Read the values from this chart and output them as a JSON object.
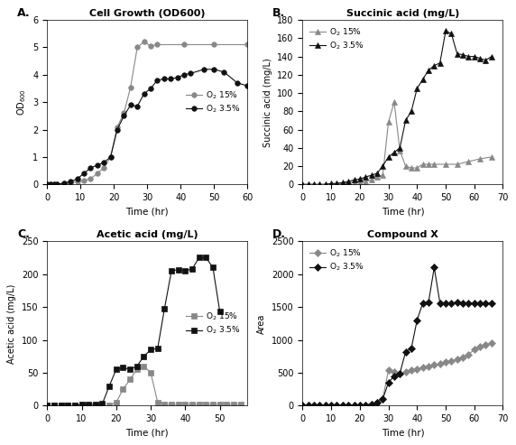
{
  "panel_A": {
    "title": "Cell Growth (OD600)",
    "xlabel": "Time (hr)",
    "ylabel": "OD$_{600}$",
    "xlim": [
      0,
      60
    ],
    "ylim": [
      0,
      6
    ],
    "xticks": [
      0,
      10,
      20,
      30,
      40,
      50,
      60
    ],
    "yticks": [
      0,
      1,
      2,
      3,
      4,
      5,
      6
    ],
    "series": [
      {
        "label": "O$_2$ 15%",
        "color": "#888888",
        "marker": "o",
        "markersize": 4,
        "markerfacecolor": "#888888",
        "x": [
          0,
          1,
          2,
          3,
          5,
          7,
          9,
          11,
          13,
          15,
          17,
          19,
          21,
          23,
          25,
          27,
          29,
          31,
          33,
          41,
          50,
          60
        ],
        "y": [
          0,
          0,
          0,
          0,
          0.05,
          0.05,
          0.1,
          0.15,
          0.2,
          0.4,
          0.6,
          1.0,
          2.1,
          2.6,
          3.55,
          5.0,
          5.2,
          5.05,
          5.1,
          5.1,
          5.1,
          5.1
        ]
      },
      {
        "label": "O$_2$ 3.5%",
        "color": "#111111",
        "marker": "o",
        "markersize": 4,
        "markerfacecolor": "#111111",
        "x": [
          0,
          1,
          2,
          3,
          5,
          7,
          9,
          11,
          13,
          15,
          17,
          19,
          21,
          23,
          25,
          27,
          29,
          31,
          33,
          35,
          37,
          39,
          41,
          43,
          47,
          50,
          53,
          57,
          60
        ],
        "y": [
          0,
          0,
          0,
          0,
          0.05,
          0.1,
          0.2,
          0.4,
          0.6,
          0.7,
          0.8,
          1.0,
          2.0,
          2.5,
          2.9,
          2.85,
          3.3,
          3.5,
          3.8,
          3.85,
          3.85,
          3.9,
          4.0,
          4.05,
          4.2,
          4.2,
          4.1,
          3.7,
          3.6
        ]
      }
    ],
    "legend_loc": "center right",
    "legend_bbox": null
  },
  "panel_B": {
    "title": "Succinic acid (mg/L)",
    "xlabel": "Time (hr)",
    "ylabel": "Succinic acid (mg/L)",
    "xlim": [
      0,
      70
    ],
    "ylim": [
      0,
      180
    ],
    "xticks": [
      0,
      10,
      20,
      30,
      40,
      50,
      60,
      70
    ],
    "yticks": [
      0,
      20,
      40,
      60,
      80,
      100,
      120,
      140,
      160,
      180
    ],
    "series": [
      {
        "label": "O$_2$ 15%",
        "color": "#888888",
        "marker": "^",
        "markersize": 5,
        "markerfacecolor": "#888888",
        "x": [
          0,
          2,
          4,
          6,
          8,
          10,
          12,
          14,
          16,
          18,
          20,
          22,
          24,
          26,
          28,
          30,
          32,
          34,
          36,
          38,
          40,
          42,
          44,
          46,
          50,
          54,
          58,
          62,
          66
        ],
        "y": [
          0,
          0,
          0,
          0,
          0,
          0,
          1,
          1,
          2,
          2,
          2,
          3,
          5,
          8,
          10,
          68,
          90,
          37,
          20,
          18,
          18,
          22,
          22,
          22,
          22,
          22,
          25,
          28,
          30
        ]
      },
      {
        "label": "O$_2$ 3.5%",
        "color": "#111111",
        "marker": "^",
        "markersize": 5,
        "markerfacecolor": "#111111",
        "x": [
          0,
          2,
          4,
          6,
          8,
          10,
          12,
          14,
          16,
          18,
          20,
          22,
          24,
          26,
          28,
          30,
          32,
          34,
          36,
          38,
          40,
          42,
          44,
          46,
          48,
          50,
          52,
          54,
          56,
          58,
          60,
          62,
          64,
          66
        ],
        "y": [
          0,
          0,
          0,
          0,
          0,
          1,
          1,
          2,
          3,
          5,
          6,
          8,
          10,
          12,
          20,
          30,
          35,
          40,
          70,
          80,
          105,
          115,
          125,
          130,
          133,
          168,
          165,
          143,
          142,
          140,
          140,
          138,
          136,
          140
        ]
      }
    ],
    "legend_loc": "upper left",
    "legend_bbox": null
  },
  "panel_C": {
    "title": "Acetic acid (mg/L)",
    "xlabel": "Time (hr)",
    "ylabel": "Acetic acid (mg/L)",
    "xlim": [
      0,
      58
    ],
    "ylim": [
      0,
      250
    ],
    "xticks": [
      0,
      10,
      20,
      30,
      40,
      50
    ],
    "yticks": [
      0,
      50,
      100,
      150,
      200,
      250
    ],
    "series": [
      {
        "label": "O$_2$ 15%",
        "color": "#888888",
        "marker": "s",
        "markersize": 4,
        "markerfacecolor": "#888888",
        "x": [
          0,
          2,
          4,
          6,
          8,
          10,
          12,
          14,
          16,
          18,
          20,
          22,
          24,
          26,
          28,
          30,
          32,
          34,
          36,
          38,
          40,
          42,
          44,
          46,
          48,
          50,
          52,
          54,
          56
        ],
        "y": [
          0,
          0,
          0,
          0,
          0,
          0,
          0,
          0,
          0,
          0,
          5,
          25,
          40,
          55,
          60,
          50,
          5,
          2,
          2,
          2,
          2,
          2,
          2,
          2,
          2,
          2,
          2,
          2,
          2
        ]
      },
      {
        "label": "O$_2$ 3.5%",
        "color": "#111111",
        "marker": "s",
        "markersize": 4,
        "markerfacecolor": "#111111",
        "x": [
          0,
          2,
          4,
          6,
          8,
          10,
          12,
          14,
          16,
          18,
          20,
          22,
          24,
          26,
          28,
          30,
          32,
          34,
          36,
          38,
          40,
          42,
          44,
          46,
          48,
          50
        ],
        "y": [
          0,
          0,
          0,
          0,
          0,
          2,
          2,
          2,
          3,
          30,
          55,
          58,
          55,
          60,
          75,
          85,
          87,
          148,
          205,
          207,
          205,
          208,
          225,
          225,
          210,
          143
        ]
      }
    ],
    "legend_loc": "center right",
    "legend_bbox": null
  },
  "panel_D": {
    "title": "Compound X",
    "xlabel": "Time (hr)",
    "ylabel": "Area",
    "xlim": [
      0,
      70
    ],
    "ylim": [
      0,
      2500
    ],
    "xticks": [
      0,
      10,
      20,
      30,
      40,
      50,
      60,
      70
    ],
    "yticks": [
      0,
      500,
      1000,
      1500,
      2000,
      2500
    ],
    "series": [
      {
        "label": "O$_2$ 15%",
        "color": "#888888",
        "marker": "D",
        "markersize": 4,
        "markerfacecolor": "#888888",
        "x": [
          0,
          2,
          4,
          6,
          8,
          10,
          12,
          14,
          16,
          18,
          20,
          22,
          24,
          26,
          28,
          30,
          32,
          34,
          36,
          38,
          40,
          42,
          44,
          46,
          48,
          50,
          52,
          54,
          56,
          58,
          60,
          62,
          64,
          66
        ],
        "y": [
          0,
          0,
          0,
          0,
          0,
          0,
          0,
          0,
          0,
          0,
          5,
          10,
          15,
          50,
          100,
          540,
          510,
          490,
          510,
          540,
          560,
          580,
          600,
          620,
          640,
          660,
          680,
          700,
          730,
          780,
          850,
          900,
          930,
          950
        ]
      },
      {
        "label": "O$_2$ 3.5%",
        "color": "#111111",
        "marker": "D",
        "markersize": 4,
        "markerfacecolor": "#111111",
        "x": [
          0,
          2,
          4,
          6,
          8,
          10,
          12,
          14,
          16,
          18,
          20,
          22,
          24,
          26,
          28,
          30,
          32,
          34,
          36,
          38,
          40,
          42,
          44,
          46,
          48,
          50,
          52,
          54,
          56,
          58,
          60,
          62,
          64,
          66
        ],
        "y": [
          0,
          0,
          0,
          0,
          0,
          0,
          0,
          0,
          0,
          0,
          5,
          10,
          20,
          50,
          100,
          350,
          450,
          490,
          820,
          870,
          1300,
          1560,
          1570,
          2100,
          1560,
          1560,
          1560,
          1570,
          1560,
          1560,
          1560,
          1560,
          1560,
          1560
        ]
      }
    ],
    "legend_loc": "upper left",
    "legend_bbox": null
  }
}
